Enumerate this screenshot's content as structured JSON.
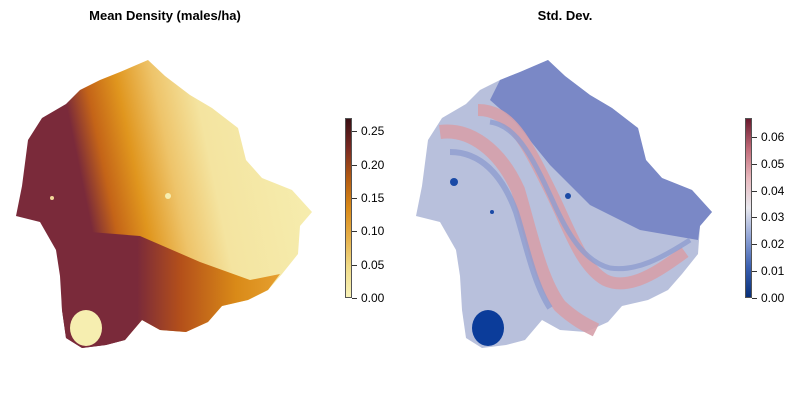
{
  "panels": [
    {
      "title": "Mean Density (males/ha)",
      "legend": {
        "min": 0.0,
        "max": 0.27,
        "ticks": [
          "0.25",
          "0.20",
          "0.15",
          "0.10",
          "0.05",
          "0.00"
        ],
        "tick_values": [
          0.25,
          0.2,
          0.15,
          0.1,
          0.05,
          0.0
        ],
        "colors": [
          "#f8f2b8",
          "#f0dc8a",
          "#e6b04a",
          "#d98a18",
          "#b35b12",
          "#7a2a22",
          "#3a0f14"
        ]
      }
    },
    {
      "title": "Std. Dev.",
      "legend": {
        "min": 0.0,
        "max": 0.067,
        "ticks": [
          "0.06",
          "0.05",
          "0.04",
          "0.03",
          "0.02",
          "0.01",
          "0.00"
        ],
        "tick_values": [
          0.06,
          0.05,
          0.04,
          0.03,
          0.02,
          0.01,
          0.0
        ],
        "colors": [
          "#08307a",
          "#3a5fb0",
          "#8fa3d6",
          "#e8e8ee",
          "#e8b9be",
          "#c06a78",
          "#6a1a2e"
        ]
      }
    }
  ]
}
